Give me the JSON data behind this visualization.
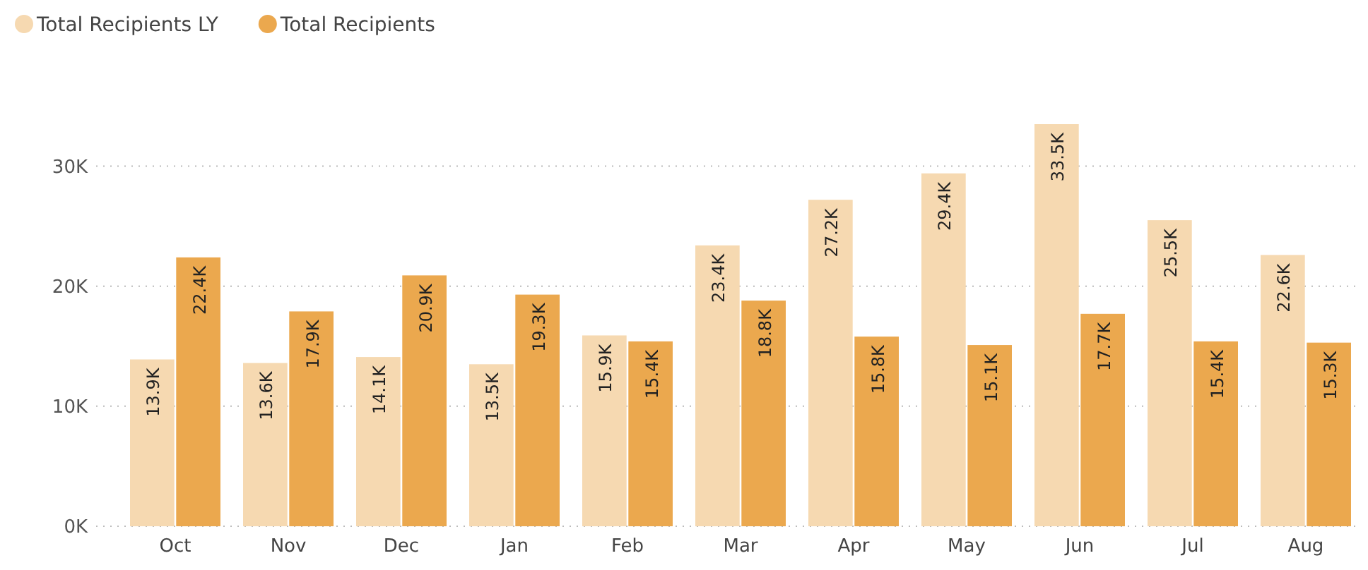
{
  "chart_data": {
    "type": "bar",
    "categories": [
      "Oct",
      "Nov",
      "Dec",
      "Jan",
      "Feb",
      "Mar",
      "Apr",
      "May",
      "Jun",
      "Jul",
      "Aug"
    ],
    "series": [
      {
        "name": "Total Recipients LY",
        "color": "#f6d9b1",
        "values": [
          13900,
          13600,
          14100,
          13500,
          15900,
          23400,
          27200,
          29400,
          33500,
          25500,
          22600
        ],
        "value_labels": [
          "13.9K",
          "13.6K",
          "14.1K",
          "13.5K",
          "15.9K",
          "23.4K",
          "27.2K",
          "29.4K",
          "33.5K",
          "25.5K",
          "22.6K"
        ]
      },
      {
        "name": "Total Recipients",
        "color": "#eba84e",
        "values": [
          22400,
          17900,
          20900,
          19300,
          15400,
          18800,
          15800,
          15100,
          17700,
          15400,
          15300
        ],
        "value_labels": [
          "22.4K",
          "17.9K",
          "20.9K",
          "19.3K",
          "15.4K",
          "18.8K",
          "15.8K",
          "15.1K",
          "17.7K",
          "15.4K",
          "15.3K"
        ]
      }
    ],
    "ylim": [
      0,
      33500
    ],
    "yticks": [
      {
        "value": 0,
        "label": "0K"
      },
      {
        "value": 10000,
        "label": "10K"
      },
      {
        "value": 20000,
        "label": "20K"
      },
      {
        "value": 30000,
        "label": "30K"
      }
    ],
    "grid": "y",
    "legend": "top left"
  }
}
